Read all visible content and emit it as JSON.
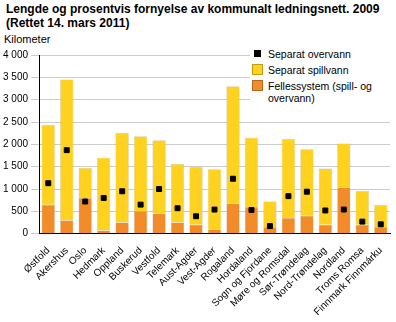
{
  "chart_data": {
    "type": "bar",
    "title": "Lengde og prosentvis fornyelse av kommunalt ledningsnett. 2009 (Rettet 14. mars 2011)",
    "y_label": "Kilometer",
    "categories": [
      "Østfold",
      "Akershus",
      "Oslo",
      "Hedmark",
      "Oppland",
      "Buskerud",
      "Vestfold",
      "Telemark",
      "Aust-Agder",
      "Vest-Agder",
      "Rogaland",
      "Hordaland",
      "Sogn og Fjordane",
      "Møre og Romsdal",
      "Sør-Trøndelag",
      "Nord-Trøndelag",
      "Nordland",
      "Troms Romsa",
      "Finnmark Finnmárku"
    ],
    "series": [
      {
        "name": "Separat overvann",
        "type": "line",
        "marker": "square",
        "line_style": "none",
        "color": "#000000",
        "values": [
          1130,
          1870,
          720,
          800,
          950,
          650,
          1000,
          570,
          390,
          540,
          1230,
          530,
          170,
          840,
          940,
          520,
          540,
          270,
          210
        ]
      },
      {
        "name": "Separat spillvann",
        "type": "bar",
        "color": "#ffd21f",
        "values": [
          1790,
          3150,
          670,
          1630,
          2010,
          1680,
          1640,
          1310,
          1290,
          1340,
          2620,
          1550,
          570,
          1770,
          1490,
          1260,
          980,
          760,
          490
        ]
      },
      {
        "name": "Fellessystem (spill- og overvann)",
        "type": "bar",
        "color": "#f28c28",
        "values": [
          650,
          300,
          800,
          70,
          250,
          500,
          450,
          250,
          200,
          100,
          680,
          600,
          150,
          350,
          400,
          200,
          1040,
          200,
          150
        ]
      }
    ],
    "stacked": true,
    "ylim": [
      0,
      4000
    ],
    "yticks": [
      0,
      500,
      {
        "value": 1000,
        "label": "1 000"
      },
      {
        "value": 1500,
        "label": "1 500"
      },
      {
        "value": 2000,
        "label": "2 000"
      },
      {
        "value": 2500,
        "label": "2 500"
      },
      {
        "value": 3000,
        "label": "3 000"
      },
      {
        "value": 3500,
        "label": "3 500"
      },
      {
        "value": 4000,
        "label": "4 000"
      }
    ],
    "grid": true,
    "legend": "top-right"
  }
}
